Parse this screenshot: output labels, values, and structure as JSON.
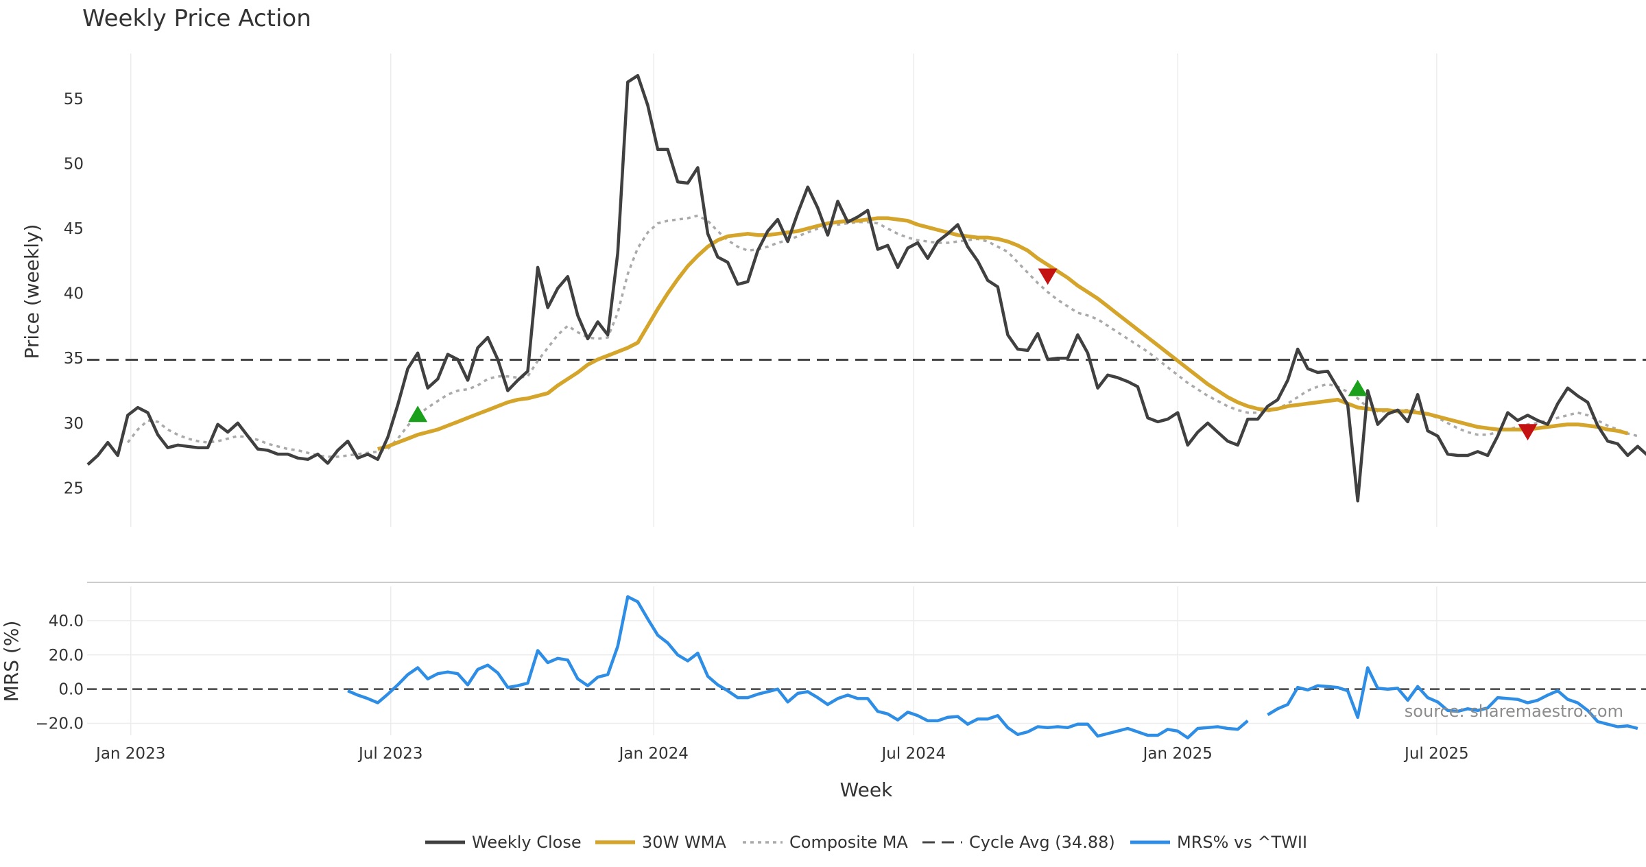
{
  "colors": {
    "close": "#404040",
    "wma": "#d4a52a",
    "composite": "#aaaaaa",
    "cycle": "#444444",
    "mrs": "#2e8de4",
    "buy": "#1aa01a",
    "sell": "#c41212",
    "grid": "#ececec",
    "source": "#8c8c8c"
  },
  "chart_data": [
    {
      "type": "line",
      "title": "Weekly Price Action",
      "xlabel": "",
      "ylabel": "Price (weekly)",
      "ylim": [
        22,
        58.5
      ],
      "yticks": [
        25,
        30,
        35,
        40,
        45,
        50,
        55
      ],
      "x_start": "2022-12-02",
      "x_step_days": 7,
      "series": [
        {
          "name": "Weekly Close",
          "start_index": 0,
          "values": [
            26.8,
            27.5,
            28.5,
            27.5,
            30.6,
            31.2,
            30.8,
            29.1,
            28.1,
            28.3,
            28.2,
            28.1,
            28.1,
            29.9,
            29.3,
            30.0,
            29.0,
            28.0,
            27.9,
            27.6,
            27.6,
            27.3,
            27.2,
            27.6,
            26.9,
            27.9,
            28.6,
            27.3,
            27.6,
            27.2,
            28.9,
            31.4,
            34.2,
            35.4,
            32.7,
            33.4,
            35.3,
            34.9,
            33.3,
            35.8,
            36.6,
            34.9,
            32.5,
            33.3,
            34.0,
            42.0,
            38.9,
            40.4,
            41.3,
            38.3,
            36.5,
            37.8,
            36.8,
            43.1,
            56.3,
            56.8,
            54.5,
            51.1,
            51.1,
            48.6,
            48.5,
            49.7,
            44.6,
            42.8,
            42.4,
            40.7,
            40.9,
            43.3,
            44.8,
            45.7,
            44.0,
            46.2,
            48.2,
            46.6,
            44.5,
            47.1,
            45.5,
            45.9,
            46.4,
            43.4,
            43.7,
            42.0,
            43.5,
            43.9,
            42.7,
            44.0,
            44.6,
            45.3,
            43.6,
            42.5,
            41.0,
            40.5,
            36.8,
            35.7,
            35.6,
            36.9,
            34.9,
            35.0,
            35.0,
            36.8,
            35.4,
            32.7,
            33.7,
            33.5,
            33.2,
            32.8,
            30.4,
            30.1,
            30.3,
            30.8,
            28.3,
            29.3,
            30.0,
            29.3,
            28.6,
            28.3,
            30.3,
            30.3,
            31.3,
            31.8,
            33.3,
            35.7,
            34.2,
            33.9,
            34.0,
            32.7,
            31.4,
            24.0,
            32.5,
            29.9,
            30.7,
            31.0,
            30.1,
            32.2,
            29.4,
            29.0,
            27.6,
            27.5,
            27.5,
            27.8,
            27.5,
            29.0,
            30.8,
            30.2,
            30.6,
            30.2,
            29.9,
            31.5,
            32.7,
            32.1,
            31.6,
            29.8,
            28.6,
            28.4,
            27.5,
            28.2,
            27.5
          ]
        },
        {
          "name": "30W WMA",
          "start_index": 29,
          "values": [
            28.0,
            28.2,
            28.5,
            28.8,
            29.1,
            29.3,
            29.5,
            29.8,
            30.1,
            30.4,
            30.7,
            31.0,
            31.3,
            31.6,
            31.8,
            31.9,
            32.1,
            32.3,
            32.9,
            33.4,
            33.9,
            34.5,
            34.9,
            35.2,
            35.5,
            35.8,
            36.2,
            37.5,
            38.8,
            40.0,
            41.1,
            42.1,
            42.9,
            43.6,
            44.1,
            44.4,
            44.5,
            44.6,
            44.5,
            44.5,
            44.6,
            44.7,
            44.8,
            45.0,
            45.2,
            45.4,
            45.5,
            45.6,
            45.6,
            45.7,
            45.8,
            45.8,
            45.7,
            45.6,
            45.3,
            45.1,
            44.9,
            44.7,
            44.5,
            44.4,
            44.3,
            44.3,
            44.2,
            44.0,
            43.7,
            43.3,
            42.7,
            42.2,
            41.7,
            41.2,
            40.6,
            40.1,
            39.6,
            39.0,
            38.4,
            37.8,
            37.2,
            36.6,
            36.0,
            35.4,
            34.8,
            34.2,
            33.6,
            33.0,
            32.5,
            32.0,
            31.6,
            31.3,
            31.1,
            31.0,
            31.1,
            31.3,
            31.4,
            31.5,
            31.6,
            31.7,
            31.8,
            31.5,
            31.2,
            31.1,
            31.0,
            31.0,
            30.9,
            30.9,
            30.8,
            30.7,
            30.5,
            30.3,
            30.1,
            29.9,
            29.7,
            29.6,
            29.5,
            29.5,
            29.5,
            29.5,
            29.6,
            29.7,
            29.8,
            29.9,
            29.9,
            29.8,
            29.7,
            29.5,
            29.4,
            29.2
          ]
        },
        {
          "name": "Composite MA",
          "start_index": 4,
          "values": [
            28.5,
            29.5,
            30.2,
            30.1,
            29.5,
            29.1,
            28.8,
            28.6,
            28.5,
            28.6,
            28.8,
            29.0,
            28.9,
            28.7,
            28.4,
            28.2,
            28.0,
            27.9,
            27.7,
            27.5,
            27.4,
            27.4,
            27.5,
            27.6,
            27.7,
            27.8,
            28.0,
            28.8,
            29.8,
            30.6,
            31.2,
            31.7,
            32.2,
            32.5,
            32.6,
            32.9,
            33.4,
            33.6,
            33.6,
            33.5,
            33.6,
            34.8,
            35.8,
            36.8,
            37.5,
            37.0,
            36.6,
            36.5,
            36.6,
            38.5,
            41.5,
            43.5,
            44.7,
            45.4,
            45.6,
            45.7,
            45.8,
            46.0,
            45.6,
            44.8,
            44.1,
            43.6,
            43.3,
            43.4,
            43.6,
            43.9,
            44.1,
            44.4,
            44.7,
            45.0,
            45.2,
            45.3,
            45.4,
            45.5,
            45.5,
            45.4,
            45.0,
            44.6,
            44.3,
            44.1,
            44.0,
            43.9,
            43.9,
            44.0,
            44.1,
            44.2,
            44.0,
            43.6,
            43.2,
            42.4,
            41.6,
            40.8,
            40.1,
            39.5,
            39.0,
            38.5,
            38.3,
            38.0,
            37.5,
            37.0,
            36.5,
            36.0,
            35.5,
            34.9,
            34.3,
            33.7,
            33.1,
            32.6,
            32.1,
            31.7,
            31.3,
            31.0,
            30.8,
            30.8,
            30.9,
            31.1,
            31.5,
            32.0,
            32.5,
            32.8,
            33.0,
            32.8,
            32.4,
            31.9,
            31.2,
            30.9,
            30.9,
            31.0,
            31.0,
            31.0,
            30.7,
            30.4,
            30.0,
            29.6,
            29.3,
            29.1,
            29.1,
            29.3,
            29.5,
            29.7,
            29.9,
            30.0,
            30.2,
            30.4,
            30.6,
            30.8,
            30.6,
            30.2,
            29.8,
            29.5,
            29.2,
            29.0
          ]
        }
      ],
      "reference_line": {
        "name": "Cycle Avg (34.88)",
        "value": 34.88
      },
      "markers": [
        {
          "type": "buy",
          "index": 33,
          "value": 30.6
        },
        {
          "type": "sell",
          "index": 96,
          "value": 41.4
        },
        {
          "type": "buy",
          "index": 127,
          "value": 32.6
        },
        {
          "type": "sell",
          "index": 144,
          "value": 29.4
        }
      ]
    },
    {
      "type": "line",
      "xlabel": "Week",
      "ylabel": "MRS (%)",
      "ylim": [
        -27,
        60
      ],
      "yticks": [
        -20,
        0,
        20,
        40
      ],
      "ytick_labels": [
        "−20.0",
        "0.0",
        "20.0",
        "40.0"
      ],
      "x_ticks": [
        {
          "label": "Jan 2023",
          "index": 4.3
        },
        {
          "label": "Jul 2023",
          "index": 30.3
        },
        {
          "label": "Jan 2024",
          "index": 56.6
        },
        {
          "label": "Jul 2024",
          "index": 82.6
        },
        {
          "label": "Jan 2025",
          "index": 109
        },
        {
          "label": "Jul 2025",
          "index": 134.9
        }
      ],
      "reference_line": {
        "value": 0
      },
      "series": [
        {
          "name": "MRS% vs ^TWII",
          "segments": [
            {
              "start_index": 26,
              "values": [
                -1.0,
                -3.5,
                -5.5,
                -8.0,
                -3.0,
                2.5,
                8.5,
                12.5,
                6.0,
                9.0,
                10.0,
                9.0,
                2.5,
                11.5,
                14.0,
                9.5,
                1.0,
                2.0,
                3.5,
                22.5,
                15.5,
                18.0,
                17.0,
                6.0,
                2.0,
                7.0,
                8.5,
                25.0,
                54.0,
                51.0,
                41.0,
                31.5,
                27.0,
                20.0,
                16.5,
                21.0,
                7.5,
                2.5,
                -1.0,
                -5.0,
                -5.0,
                -3.0,
                -1.5,
                0.0,
                -7.5,
                -2.5,
                -1.5,
                -5.0,
                -9.0,
                -5.5,
                -3.5,
                -5.5,
                -5.5,
                -13.0,
                -14.5,
                -18.0,
                -13.5,
                -15.5,
                -18.5,
                -18.5,
                -16.5,
                -16.0,
                -20.5,
                -17.5,
                -17.5,
                -15.5,
                -22.5,
                -26.5,
                -25.0,
                -22.0,
                -22.5,
                -22.0,
                -22.5,
                -20.5,
                -20.5,
                -27.5,
                -26.0,
                -24.5,
                -23.0,
                -25.0,
                -27.0,
                -27.0,
                -23.5,
                -24.5,
                -28.5,
                -23.0,
                -22.5,
                -22.0,
                -23.0,
                -23.5,
                -18.5
              ]
            },
            {
              "start_index": 118,
              "values": [
                -15.0,
                -11.5,
                -9.0,
                1.0,
                -0.5,
                2.0,
                1.5,
                1.0,
                -1.0,
                -16.5,
                12.5,
                0.5,
                0.0,
                0.5,
                -6.5,
                1.5,
                -5.0,
                -7.5,
                -12.5,
                -13.0,
                -11.5,
                -12.5,
                -11.0,
                -5.0,
                -5.5,
                -6.0,
                -8.0,
                -6.5,
                -3.5,
                -1.0,
                -6.0,
                -8.0,
                -12.5,
                -19.0,
                -20.5,
                -22.0,
                -21.5,
                -23.0
              ]
            }
          ]
        }
      ]
    }
  ],
  "legend": [
    {
      "label": "Weekly Close",
      "style": "close"
    },
    {
      "label": "30W WMA",
      "style": "wma"
    },
    {
      "label": "Composite MA",
      "style": "composite"
    },
    {
      "label": "Cycle Avg (34.88)",
      "style": "cycle"
    },
    {
      "label": "MRS% vs ^TWII",
      "style": "mrs"
    }
  ],
  "source_text": "source: sharemaestro.com"
}
